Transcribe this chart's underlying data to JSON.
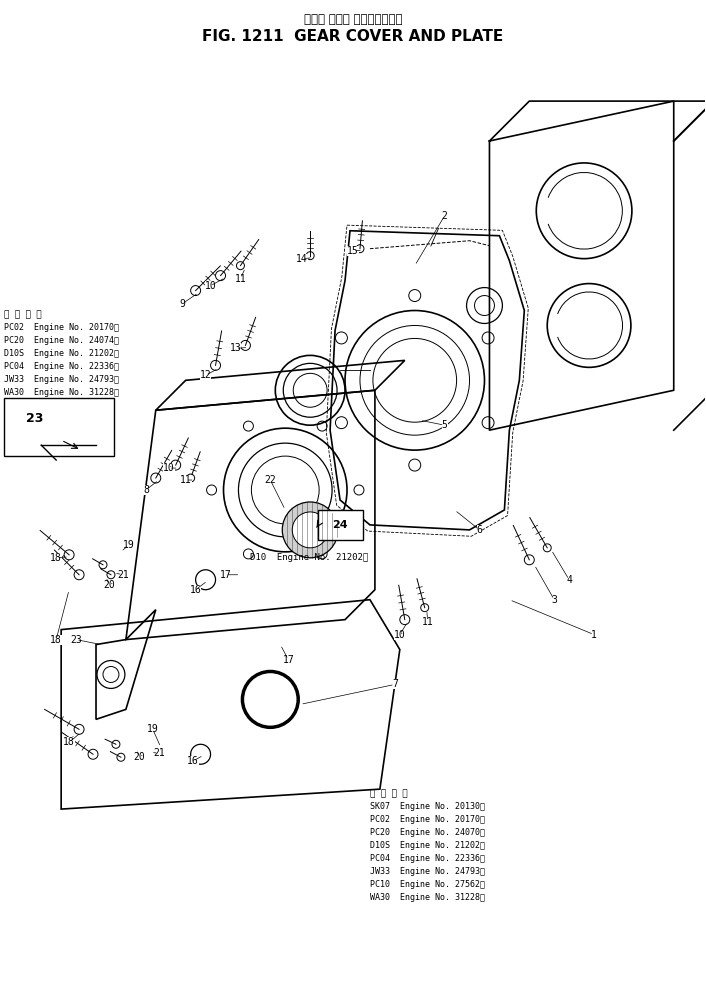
{
  "title_jp": "ギヤー カバー およびプレート",
  "title_en": "FIG. 1211  GEAR COVER AND PLATE",
  "bg_color": "#ffffff",
  "fig_width": 7.06,
  "fig_height": 9.81,
  "app1_lines": [
    "適 用 号 機",
    "PC02  Engine No. 20170～",
    "PC20  Engine No. 24074～",
    "D10S  Engine No. 21202～",
    "PC04  Engine No. 22336～",
    "JW33  Engine No. 24793～",
    "WA30  Engine No. 31228～"
  ],
  "app2_note": "D10  Engine No. 21202～",
  "app3_lines": [
    "適 用 号 機",
    "SK07  Engine No. 20130～",
    "PC02  Engine No. 20170～",
    "PC20  Engine No. 24070～",
    "D10S  Engine No. 21202～",
    "PC04  Engine No. 22336～",
    "JW33  Engine No. 24793～",
    "PC10  Engine No. 27562～",
    "WA30  Engine No. 31228～"
  ]
}
